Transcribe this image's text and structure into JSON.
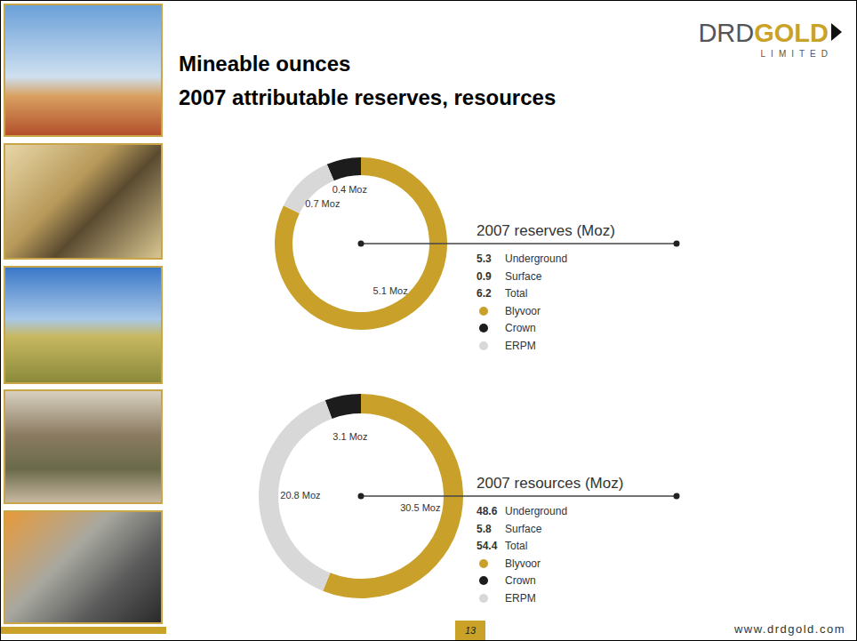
{
  "header": {
    "title": [
      "Mineable ounces",
      "2007 attributable reserves, resources"
    ],
    "logo": [
      "DRD",
      "GOLD"
    ],
    "logo_sub": "LIMITED"
  },
  "chart_data": [
    {
      "type": "pie",
      "title": "2007 reserves (Moz)",
      "categories": [
        "Blyvoor",
        "Crown",
        "ERPM"
      ],
      "values": [
        5.1,
        0.4,
        0.7
      ],
      "value_labels": [
        "5.1 Moz",
        "0.4 Moz",
        "0.7 Moz"
      ],
      "colors": [
        "#c8a02a",
        "#1c1c1c",
        "#d8d8d8"
      ],
      "data_labels": true,
      "legend": "right",
      "annotations": [
        {
          "value": 5.3,
          "text": "Underground"
        },
        {
          "value": 0.9,
          "text": "Surface"
        },
        {
          "value": 6.2,
          "text": "Total"
        }
      ]
    },
    {
      "type": "pie",
      "title": "2007 resources (Moz)",
      "categories": [
        "Blyvoor",
        "Crown",
        "ERPM"
      ],
      "values": [
        30.5,
        3.1,
        20.8
      ],
      "value_labels": [
        "30.5 Moz",
        "3.1 Moz",
        "20.8 Moz"
      ],
      "colors": [
        "#c8a02a",
        "#1c1c1c",
        "#d8d8d8"
      ],
      "data_labels": true,
      "legend": "right",
      "annotations": [
        {
          "value": 48.6,
          "text": "Underground"
        },
        {
          "value": 5.8,
          "text": "Surface"
        },
        {
          "value": 54.4,
          "text": "Total"
        }
      ]
    }
  ],
  "footer": {
    "page": "13",
    "url": "www.drdgold.com"
  }
}
